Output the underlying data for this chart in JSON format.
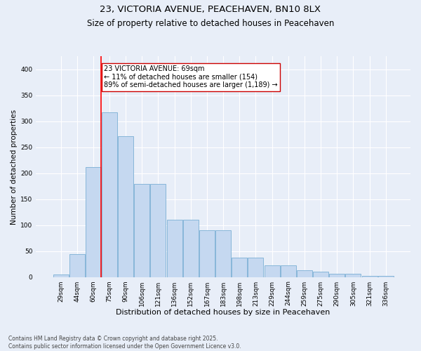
{
  "title": "23, VICTORIA AVENUE, PEACEHAVEN, BN10 8LX",
  "subtitle": "Size of property relative to detached houses in Peacehaven",
  "xlabel": "Distribution of detached houses by size in Peacehaven",
  "ylabel": "Number of detached properties",
  "categories": [
    "29sqm",
    "44sqm",
    "60sqm",
    "75sqm",
    "90sqm",
    "106sqm",
    "121sqm",
    "136sqm",
    "152sqm",
    "167sqm",
    "183sqm",
    "198sqm",
    "213sqm",
    "229sqm",
    "244sqm",
    "259sqm",
    "275sqm",
    "290sqm",
    "305sqm",
    "321sqm",
    "336sqm"
  ],
  "values": [
    5,
    44,
    212,
    317,
    272,
    180,
    180,
    110,
    110,
    90,
    90,
    38,
    38,
    23,
    23,
    13,
    10,
    6,
    6,
    2,
    2
  ],
  "bar_color": "#c5d8f0",
  "bar_edge_color": "#7aafd4",
  "red_line_x": 2.5,
  "annotation_text": "23 VICTORIA AVENUE: 69sqm\n← 11% of detached houses are smaller (154)\n89% of semi-detached houses are larger (1,189) →",
  "annotation_box_color": "#ffffff",
  "annotation_box_edge_color": "#cc0000",
  "footnote": "Contains HM Land Registry data © Crown copyright and database right 2025.\nContains public sector information licensed under the Open Government Licence v3.0.",
  "bg_color": "#e8eef8",
  "plot_bg_color": "#e8eef8",
  "grid_color": "#ffffff",
  "title_fontsize": 9.5,
  "subtitle_fontsize": 8.5,
  "xlabel_fontsize": 8,
  "ylabel_fontsize": 7.5,
  "tick_fontsize": 6.5,
  "annot_fontsize": 7,
  "footnote_fontsize": 5.5,
  "ylim": [
    0,
    425
  ],
  "yticks": [
    0,
    50,
    100,
    150,
    200,
    250,
    300,
    350,
    400
  ]
}
